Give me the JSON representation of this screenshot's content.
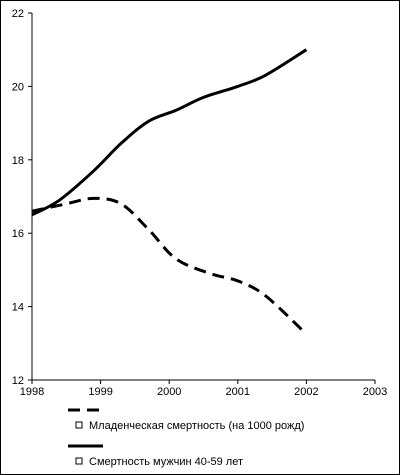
{
  "chart_data": {
    "type": "line",
    "title": "",
    "xlabel": "",
    "ylabel": "",
    "xlim": [
      1998,
      2003
    ],
    "ylim": [
      12,
      22
    ],
    "x_ticks": [
      "1998",
      "1999",
      "2000",
      "2001",
      "2002",
      "2003"
    ],
    "y_ticks": [
      "12",
      "14",
      "16",
      "18",
      "20",
      "22"
    ],
    "grid": false,
    "legend": "bottom",
    "series": [
      {
        "name": "Младенческая смертность (на 1000 рожд)",
        "style": "dashed",
        "color": "#000000",
        "x": [
          1998.0,
          1998.5,
          1998.9,
          1999.3,
          1999.7,
          2000.1,
          2000.6,
          2001.0,
          2001.4,
          2002.0
        ],
        "y": [
          16.6,
          16.8,
          16.95,
          16.8,
          16.1,
          15.3,
          14.9,
          14.7,
          14.3,
          13.25
        ]
      },
      {
        "name": "Смертность мужчин 40-59 лет",
        "style": "solid",
        "color": "#000000",
        "x": [
          1998.0,
          1998.4,
          1998.9,
          1999.3,
          1999.7,
          2000.1,
          2000.5,
          2001.0,
          2001.4,
          2002.0
        ],
        "y": [
          16.5,
          16.9,
          17.7,
          18.45,
          19.05,
          19.35,
          19.7,
          20.0,
          20.3,
          21.0
        ]
      }
    ]
  }
}
